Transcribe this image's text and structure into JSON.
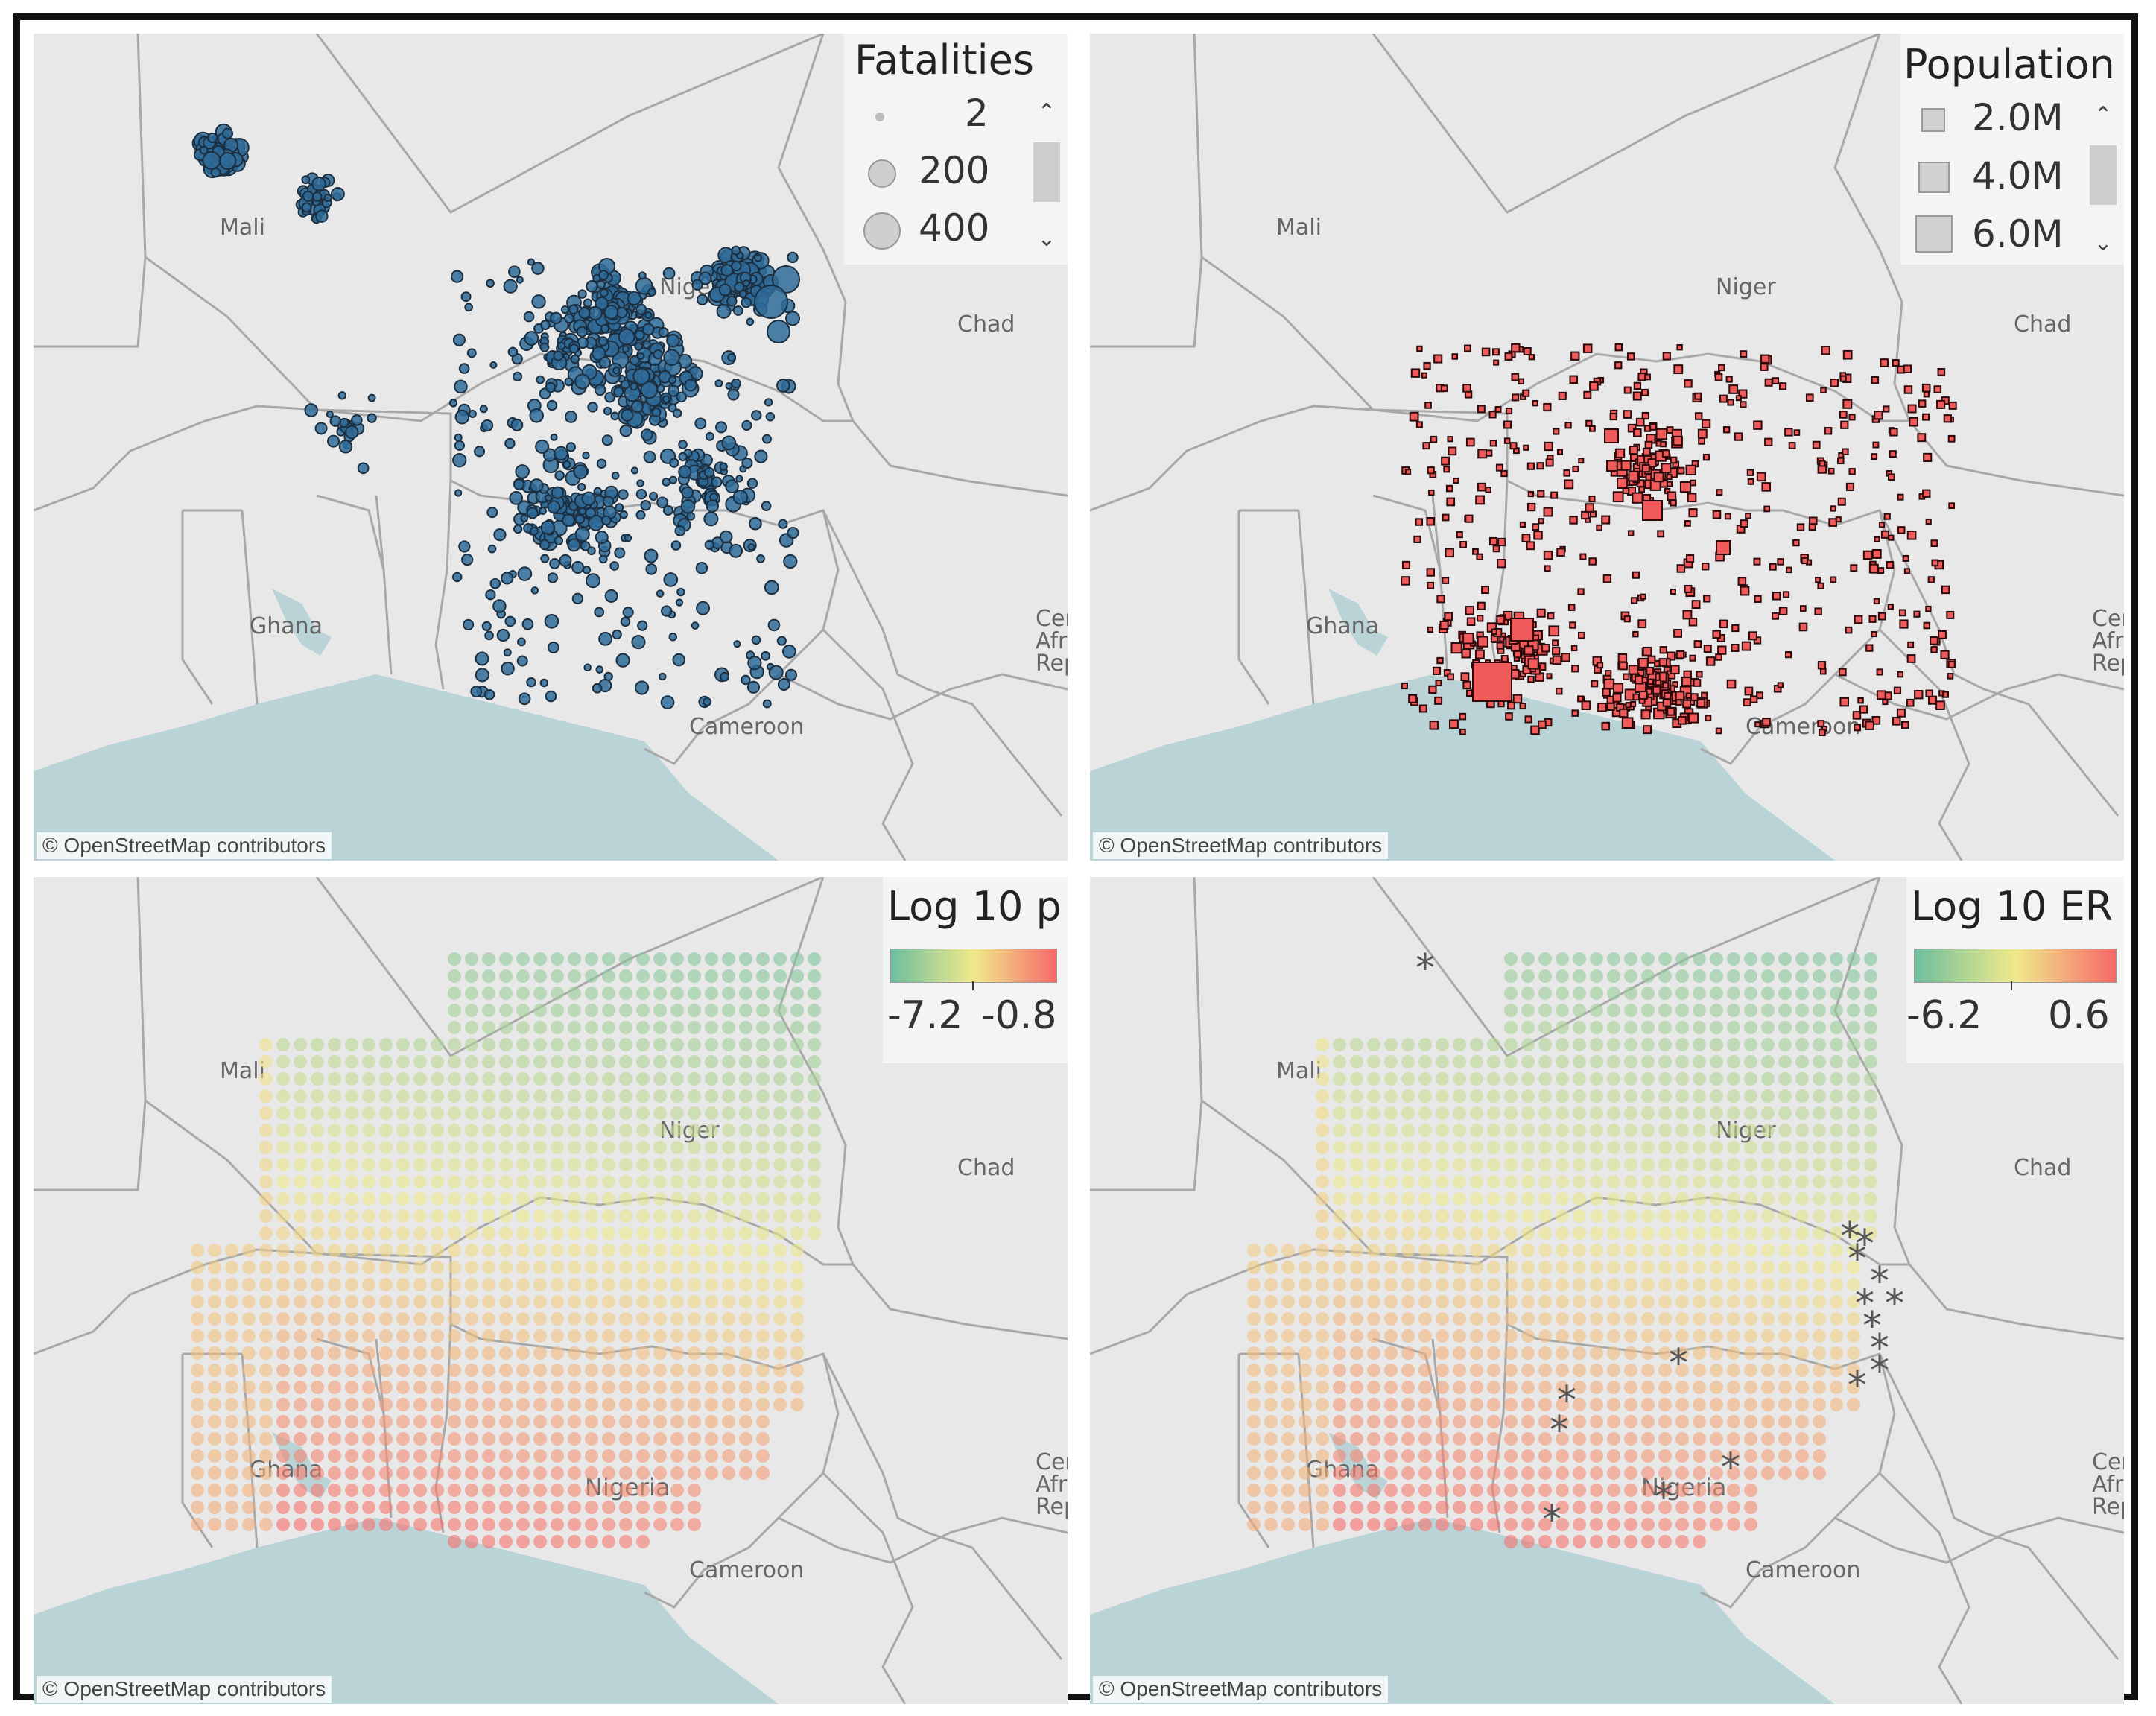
{
  "panels": [
    {
      "id": "fatalities",
      "legend": {
        "title": "Fatalities",
        "items": [
          "2",
          "200",
          "400"
        ],
        "symbol": "circle"
      },
      "labels": [
        "Mali",
        "Niger",
        "Chad",
        "Ghana",
        "Cameroon",
        "Cent",
        "Afric",
        "Repu"
      ],
      "attribution": "© OpenStreetMap contributors",
      "marker_color": "#2f6b99"
    },
    {
      "id": "population",
      "legend": {
        "title": "Population",
        "items": [
          "2.0M",
          "4.0M",
          "6.0M"
        ],
        "symbol": "square"
      },
      "labels": [
        "Mali",
        "Niger",
        "Chad",
        "Ghana",
        "Cameroon",
        "Cent",
        "Afric",
        "Repu"
      ],
      "attribution": "© OpenStreetMap contributors",
      "marker_color": "#f05a5a"
    },
    {
      "id": "log10p",
      "legend": {
        "title": "Log 10 p",
        "min": "-7.2",
        "max": "-0.8",
        "colors": [
          "#6fbf9e",
          "#efe98a",
          "#f76a6a"
        ]
      },
      "labels": [
        "Mali",
        "Niger",
        "Chad",
        "Nigeria",
        "Ghana",
        "Cameroon",
        "Cent",
        "Afric",
        "Repu"
      ],
      "attribution": "© OpenStreetMap contributors"
    },
    {
      "id": "log10er",
      "legend": {
        "title": "Log 10 ER",
        "min": "-6.2",
        "max": "0.6",
        "colors": [
          "#6fbf9e",
          "#efe98a",
          "#f76a6a"
        ]
      },
      "labels": [
        "Mali",
        "Niger",
        "Chad",
        "Nigeria",
        "Ghana",
        "Cameroon",
        "Cent",
        "Afric",
        "Repu"
      ],
      "attribution": "© OpenStreetMap contributors",
      "marker_symbol": "*"
    }
  ],
  "colors": {
    "land": "#e8e8e8",
    "water": "#b9d3d6",
    "border": "#a8a8a8"
  }
}
